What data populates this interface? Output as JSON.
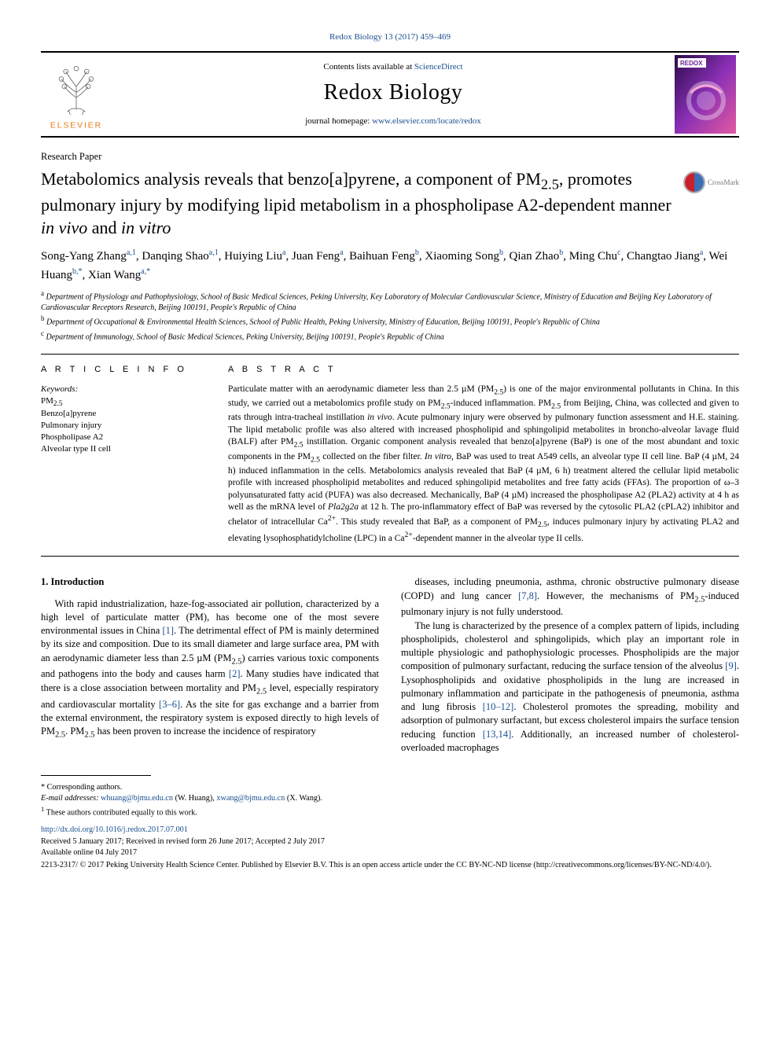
{
  "top_citation": "Redox Biology 13 (2017) 459–469",
  "top_citation_href": "#",
  "masthead": {
    "contents_prefix": "Contents lists available at ",
    "contents_link_text": "ScienceDirect",
    "contents_link_href": "#",
    "journal": "Redox Biology",
    "homepage_prefix": "journal homepage: ",
    "homepage_url": "www.elsevier.com/locate/redox",
    "homepage_href": "#",
    "cover_colors": {
      "bg1": "#2a0a4a",
      "bg2": "#8a2fb5",
      "accent": "#e35aa0",
      "label_bg": "#ffffff",
      "label_text": "#6a1b9a"
    }
  },
  "section_label": "Research Paper",
  "title_parts": {
    "pre": "Metabolomics analysis reveals that benzo[a]pyrene, a component of PM",
    "pm_sub": "2.5",
    "mid": ", promotes pulmonary injury by modifying lipid metabolism in a phospholipase A2-dependent manner ",
    "ital1": "in vivo",
    "and": " and ",
    "ital2": "in vitro"
  },
  "crossmark_label": "CrossMark",
  "authors": [
    {
      "name": "Song-Yang Zhang",
      "sup": "a,1"
    },
    {
      "name": "Danqing Shao",
      "sup": "a,1"
    },
    {
      "name": "Huiying Liu",
      "sup": "a"
    },
    {
      "name": "Juan Feng",
      "sup": "a"
    },
    {
      "name": "Baihuan Feng",
      "sup": "b"
    },
    {
      "name": "Xiaoming Song",
      "sup": "b"
    },
    {
      "name": "Qian Zhao",
      "sup": "b"
    },
    {
      "name": "Ming Chu",
      "sup": "c"
    },
    {
      "name": "Changtao Jiang",
      "sup": "a"
    },
    {
      "name": "Wei Huang",
      "sup": "b,*"
    },
    {
      "name": "Xian Wang",
      "sup": "a,*"
    }
  ],
  "affiliations": [
    {
      "key": "a",
      "text": "Department of Physiology and Pathophysiology, School of Basic Medical Sciences, Peking University, Key Laboratory of Molecular Cardiovascular Science, Ministry of Education and Beijing Key Laboratory of Cardiovascular Receptors Research, Beijing 100191, People's Republic of China"
    },
    {
      "key": "b",
      "text": "Department of Occupational & Environmental Health Sciences, School of Public Health, Peking University, Ministry of Education, Beijing 100191, People's Republic of China"
    },
    {
      "key": "c",
      "text": "Department of Immunology, School of Basic Medical Sciences, Peking University, Beijing 100191, People's Republic of China"
    }
  ],
  "article_info_heading": "A R T I C L E  I N F O",
  "abstract_heading": "A B S T R A C T",
  "keywords_label": "Keywords:",
  "keywords": [
    "PM2.5",
    "Benzo[a]pyrene",
    "Pulmonary injury",
    "Phospholipase A2",
    "Alveolar type II cell"
  ],
  "abstract": "Particulate matter with an aerodynamic diameter less than 2.5 µM (PM2.5) is one of the major environmental pollutants in China. In this study, we carried out a metabolomics profile study on PM2.5-induced inflammation. PM2.5 from Beijing, China, was collected and given to rats through intra-tracheal instillation in vivo. Acute pulmonary injury were observed by pulmonary function assessment and H.E. staining. The lipid metabolic profile was also altered with increased phospholipid and sphingolipid metabolites in broncho-alveolar lavage fluid (BALF) after PM2.5 instillation. Organic component analysis revealed that benzo[a]pyrene (BaP) is one of the most abundant and toxic components in the PM2.5 collected on the fiber filter. In vitro, BaP was used to treat A549 cells, an alveolar type II cell line. BaP (4 µM, 24 h) induced inflammation in the cells. Metabolomics analysis revealed that BaP (4 µM, 6 h) treatment altered the cellular lipid metabolic profile with increased phospholipid metabolites and reduced sphingolipid metabolites and free fatty acids (FFAs). The proportion of ω–3 polyunsaturated fatty acid (PUFA) was also decreased. Mechanically, BaP (4 µM) increased the phospholipase A2 (PLA2) activity at 4 h as well as the mRNA level of Pla2g2a at 12 h. The pro-inflammatory effect of BaP was reversed by the cytosolic PLA2 (cPLA2) inhibitor and chelator of intracellular Ca2+. This study revealed that BaP, as a component of PM2.5, induces pulmonary injury by activating PLA2 and elevating lysophosphatidylcholine (LPC) in a Ca2+-dependent manner in the alveolar type II cells.",
  "introduction": {
    "heading": "1. Introduction",
    "col1_p1": "With rapid industrialization, haze-fog-associated air pollution, characterized by a high level of particulate matter (PM), has become one of the most severe environmental issues in China [1]. The detrimental effect of PM is mainly determined by its size and composition. Due to its small diameter and large surface area, PM with an aerodynamic diameter less than 2.5 µM (PM2.5) carries various toxic components and pathogens into the body and causes harm [2]. Many studies have indicated that there is a close association between mortality and PM2.5 level, especially respiratory and cardiovascular mortality [3–6]. As the site for gas exchange and a barrier from the external environment, the respiratory system is exposed directly to high levels of PM2.5. PM2.5 has been proven to increase the incidence of respiratory",
    "col2_p1": "diseases, including pneumonia, asthma, chronic obstructive pulmonary disease (COPD) and lung cancer [7,8]. However, the mechanisms of PM2.5-induced pulmonary injury is not fully understood.",
    "col2_p2": "The lung is characterized by the presence of a complex pattern of lipids, including phospholipids, cholesterol and sphingolipids, which play an important role in multiple physiologic and pathophysiologic processes. Phospholipids are the major composition of pulmonary surfactant, reducing the surface tension of the alveolus [9]. Lysophospholipids and oxidative phospholipids in the lung are increased in pulmonary inflammation and participate in the pathogenesis of pneumonia, asthma and lung fibrosis [10–12]. Cholesterol promotes the spreading, mobility and adsorption of pulmonary surfactant, but excess cholesterol impairs the surface tension reducing function [13,14]. Additionally, an increased number of cholesterol-overloaded macrophages",
    "refs": {
      "r1": "[1]",
      "r2": "[2]",
      "r36": "[3–6]",
      "r78": "[7,8]",
      "r9": "[9]",
      "r1012": "[10–12]",
      "r1314": "[13,14]"
    }
  },
  "footnotes": {
    "corr": "* Corresponding authors.",
    "emails_label": "E-mail addresses: ",
    "email1": "whuang@bjmu.edu.cn",
    "email1_who": " (W. Huang), ",
    "email2": "xwang@bjmu.edu.cn",
    "email2_who": " (X. Wang).",
    "equal": "1 These authors contributed equally to this work.",
    "doi": "http://dx.doi.org/10.1016/j.redox.2017.07.001",
    "received": "Received 5 January 2017; Received in revised form 26 June 2017; Accepted 2 July 2017",
    "online": "Available online 04 July 2017",
    "copyright": "2213-2317/ © 2017 Peking University Health Science Center. Published by Elsevier B.V. This is an open access article under the CC BY-NC-ND license (http://creativecommons.org/licenses/BY-NC-ND/4.0/)."
  },
  "colors": {
    "link": "#1a4f8f",
    "elsevier_orange": "#e67817"
  }
}
